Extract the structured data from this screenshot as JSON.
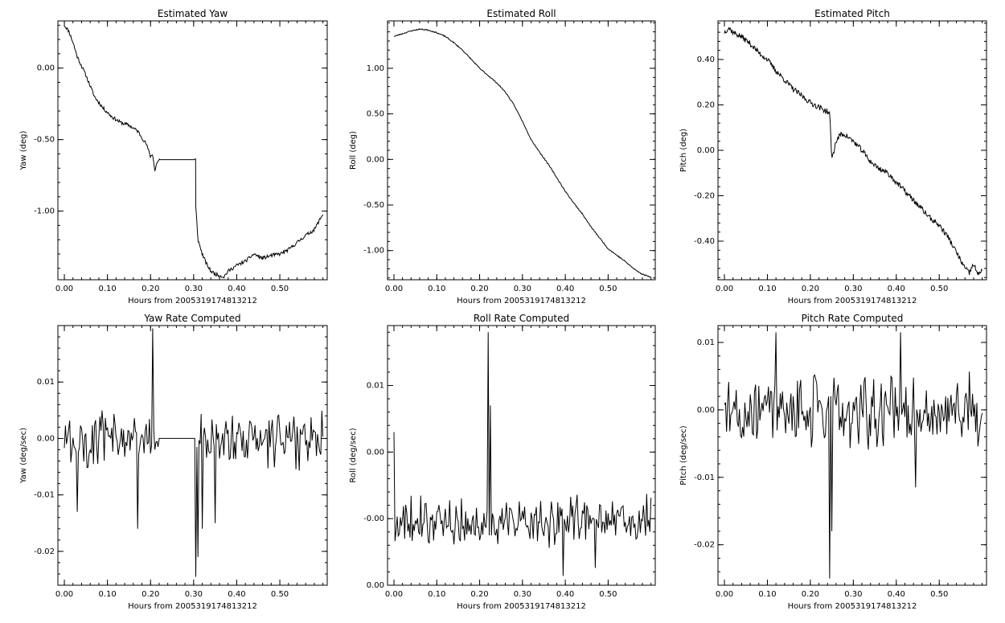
{
  "chart_data": [
    {
      "type": "line",
      "title": "Estimated Yaw",
      "xlabel": "Hours from 2005319174813212",
      "ylabel": "Yaw (deg)",
      "xlim": [
        -0.015,
        0.61
      ],
      "ylim": [
        -1.48,
        0.33
      ],
      "xticks": [
        0.0,
        0.1,
        0.2,
        0.3,
        0.4,
        0.5
      ],
      "xtick_labels": [
        "0.00",
        "0.10",
        "0.20",
        "0.30",
        "0.40",
        "0.50"
      ],
      "yticks": [
        0.0,
        -0.5,
        -1.0
      ],
      "ytick_labels": [
        "0.00",
        "-0.50",
        "-1.00"
      ],
      "noise": {
        "amp": 0.012,
        "seed": 11
      },
      "series": [
        {
          "x": [
            0.0,
            0.01,
            0.02,
            0.03,
            0.05,
            0.07,
            0.09,
            0.11,
            0.13,
            0.15,
            0.17,
            0.19,
            0.2,
            0.205,
            0.21,
            0.215,
            0.22,
            0.22,
            0.305,
            0.305,
            0.31,
            0.32,
            0.33,
            0.34,
            0.35,
            0.36,
            0.37,
            0.38,
            0.4,
            0.42,
            0.44,
            0.46,
            0.48,
            0.5,
            0.52,
            0.54,
            0.56,
            0.58,
            0.6
          ],
          "y": [
            0.3,
            0.26,
            0.18,
            0.08,
            -0.05,
            -0.2,
            -0.28,
            -0.34,
            -0.38,
            -0.4,
            -0.44,
            -0.53,
            -0.62,
            -0.6,
            -0.72,
            -0.66,
            -0.64,
            -0.64,
            -0.64,
            -0.97,
            -1.2,
            -1.3,
            -1.37,
            -1.42,
            -1.44,
            -1.45,
            -1.46,
            -1.42,
            -1.38,
            -1.35,
            -1.3,
            -1.33,
            -1.31,
            -1.3,
            -1.27,
            -1.22,
            -1.17,
            -1.13,
            -1.02
          ]
        }
      ]
    },
    {
      "type": "line",
      "title": "Estimated Roll",
      "xlabel": "Hours from 2005319174813212",
      "ylabel": "Roll (deg)",
      "xlim": [
        -0.015,
        0.61
      ],
      "ylim": [
        -1.32,
        1.52
      ],
      "xticks": [
        0.0,
        0.1,
        0.2,
        0.3,
        0.4,
        0.5
      ],
      "xtick_labels": [
        "0.00",
        "0.10",
        "0.20",
        "0.30",
        "0.40",
        "0.50"
      ],
      "yticks": [
        1.0,
        0.5,
        0.0,
        -0.5,
        -1.0
      ],
      "ytick_labels": [
        "1.00",
        "0.50",
        "0.00",
        "-0.50",
        "-1.00"
      ],
      "noise": {
        "amp": 0.006,
        "seed": 23
      },
      "series": [
        {
          "x": [
            0.0,
            0.02,
            0.04,
            0.06,
            0.08,
            0.1,
            0.12,
            0.14,
            0.16,
            0.18,
            0.2,
            0.22,
            0.24,
            0.26,
            0.28,
            0.3,
            0.32,
            0.34,
            0.36,
            0.38,
            0.4,
            0.42,
            0.44,
            0.46,
            0.48,
            0.5,
            0.52,
            0.54,
            0.56,
            0.58,
            0.6
          ],
          "y": [
            1.35,
            1.38,
            1.41,
            1.43,
            1.42,
            1.39,
            1.35,
            1.28,
            1.2,
            1.1,
            1.0,
            0.92,
            0.84,
            0.74,
            0.6,
            0.42,
            0.22,
            0.08,
            -0.05,
            -0.2,
            -0.35,
            -0.48,
            -0.6,
            -0.74,
            -0.86,
            -0.98,
            -1.05,
            -1.12,
            -1.2,
            -1.26,
            -1.29
          ]
        }
      ]
    },
    {
      "type": "line",
      "title": "Estimated Pitch",
      "xlabel": "Hours from 2005319174813212",
      "ylabel": "Pitch (deg)",
      "xlim": [
        -0.015,
        0.61
      ],
      "ylim": [
        -0.57,
        0.57
      ],
      "xticks": [
        0.0,
        0.1,
        0.2,
        0.3,
        0.4,
        0.5
      ],
      "xtick_labels": [
        "0.00",
        "0.10",
        "0.20",
        "0.30",
        "0.40",
        "0.50"
      ],
      "yticks": [
        0.4,
        0.2,
        0.0,
        -0.2,
        -0.4
      ],
      "ytick_labels": [
        "0.40",
        "0.20",
        "0.00",
        "-0.20",
        "-0.40"
      ],
      "noise": {
        "amp": 0.012,
        "seed": 37
      },
      "series": [
        {
          "x": [
            0.0,
            0.01,
            0.02,
            0.04,
            0.06,
            0.08,
            0.1,
            0.12,
            0.14,
            0.16,
            0.18,
            0.2,
            0.22,
            0.24,
            0.245,
            0.25,
            0.26,
            0.27,
            0.28,
            0.3,
            0.32,
            0.34,
            0.36,
            0.38,
            0.4,
            0.42,
            0.44,
            0.46,
            0.48,
            0.5,
            0.52,
            0.54,
            0.56,
            0.57,
            0.58,
            0.59,
            0.6
          ],
          "y": [
            0.52,
            0.54,
            0.52,
            0.5,
            0.47,
            0.43,
            0.4,
            0.35,
            0.31,
            0.27,
            0.24,
            0.21,
            0.19,
            0.17,
            0.16,
            -0.04,
            0.04,
            0.07,
            0.07,
            0.04,
            0.0,
            -0.05,
            -0.08,
            -0.1,
            -0.14,
            -0.18,
            -0.22,
            -0.26,
            -0.3,
            -0.33,
            -0.38,
            -0.45,
            -0.52,
            -0.54,
            -0.5,
            -0.55,
            -0.52
          ]
        }
      ]
    },
    {
      "type": "line",
      "title": "Yaw Rate Computed",
      "xlabel": "Hours from 2005319174813212",
      "ylabel": "Yaw (deg/sec)",
      "xlim": [
        -0.015,
        0.61
      ],
      "ylim": [
        -0.026,
        0.02
      ],
      "xticks": [
        0.0,
        0.1,
        0.2,
        0.3,
        0.4,
        0.5
      ],
      "xtick_labels": [
        "0.00",
        "0.10",
        "0.20",
        "0.30",
        "0.40",
        "0.50"
      ],
      "yticks": [
        0.01,
        0.0,
        -0.01,
        -0.02
      ],
      "ytick_labels": [
        "0.01",
        "0.00",
        "-0.01",
        "-0.02"
      ],
      "noise": {
        "kind": "rate",
        "step": 0.0025,
        "amp": 0.006,
        "seed": 101,
        "flat": [
          [
            0.22,
            0.305
          ]
        ]
      },
      "series": [
        {
          "x": [
            0.205,
            0.305,
            0.31,
            0.17,
            0.03,
            0.32,
            0.35
          ],
          "y": [
            0.0195,
            -0.0245,
            -0.021,
            -0.016,
            -0.013,
            -0.016,
            -0.015
          ]
        }
      ]
    },
    {
      "type": "line",
      "title": "Roll Rate Computed",
      "xlabel": "Hours from 2005319174813212",
      "ylabel": "Roll (deg/sec)",
      "xlim": [
        -0.015,
        0.61
      ],
      "ylim": [
        -0.005,
        0.0145
      ],
      "xticks": [
        0.0,
        0.1,
        0.2,
        0.3,
        0.4,
        0.5
      ],
      "xtick_labels": [
        "0.00",
        "0.10",
        "0.20",
        "0.30",
        "0.40",
        "0.50"
      ],
      "yticks": [
        0.01,
        0.005,
        0.0,
        -0.005
      ],
      "ytick_labels": [
        "0.01",
        "0.00",
        "-0.00",
        "0.00"
      ],
      "noise": {
        "kind": "rate",
        "step": 0.0025,
        "amp": 0.0022,
        "base": -0.0001,
        "seed": 202
      },
      "series": [
        {
          "x": [
            0.22,
            0.225,
            0.0,
            0.395,
            0.47
          ],
          "y": [
            0.014,
            0.0085,
            0.0065,
            -0.0043,
            -0.0037
          ]
        }
      ]
    },
    {
      "type": "line",
      "title": "Pitch Rate Computed",
      "xlabel": "Hours from 2005319174813212",
      "ylabel": "Pitch (deg/sec)",
      "xlim": [
        -0.015,
        0.61
      ],
      "ylim": [
        -0.026,
        0.0125
      ],
      "xticks": [
        0.0,
        0.1,
        0.2,
        0.3,
        0.4,
        0.5
      ],
      "xtick_labels": [
        "0.00",
        "0.10",
        "0.20",
        "0.30",
        "0.40",
        "0.50"
      ],
      "yticks": [
        0.01,
        0.0,
        -0.01,
        -0.02
      ],
      "ytick_labels": [
        "0.01",
        "0.00",
        "-0.01",
        "-0.02"
      ],
      "noise": {
        "kind": "rate",
        "step": 0.0025,
        "amp": 0.0065,
        "seed": 303
      },
      "series": [
        {
          "x": [
            0.245,
            0.25,
            0.12,
            0.41,
            0.445
          ],
          "y": [
            -0.025,
            -0.018,
            0.0115,
            0.0115,
            -0.0115
          ]
        }
      ]
    }
  ]
}
